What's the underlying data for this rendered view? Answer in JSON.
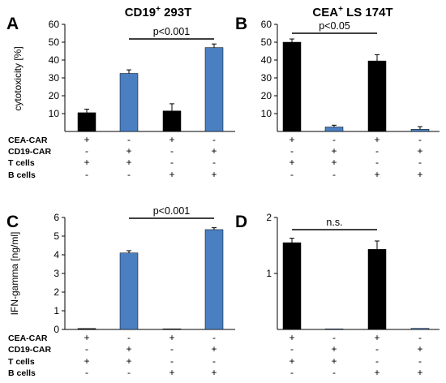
{
  "chart_data": [
    {
      "panel": "A",
      "type": "bar",
      "title": "CD19",
      "title_sup": "+",
      "title_suffix": " 293T",
      "ylabel": "cytotoxicity [%]",
      "ylim": [
        0,
        60
      ],
      "yticks": [
        "10",
        "20",
        "30",
        "40",
        "50",
        "60"
      ],
      "bars": [
        {
          "value": 10.5,
          "error": 2.0,
          "color": "#000000"
        },
        {
          "value": 32.5,
          "error": 2.0,
          "color": "#4a7fc1"
        },
        {
          "value": 11.5,
          "error": 4.0,
          "color": "#000000"
        },
        {
          "value": 47.0,
          "error": 2.0,
          "color": "#4a7fc1"
        }
      ],
      "significance": {
        "text": "p<0.001",
        "from": 1,
        "to": 3
      },
      "conditions": [
        {
          "label": "CEA-CAR",
          "signs": [
            "+",
            "-",
            "+",
            "-"
          ]
        },
        {
          "label": "CD19-CAR",
          "signs": [
            "-",
            "+",
            "-",
            "+"
          ]
        },
        {
          "label": "T cells",
          "signs": [
            "+",
            "+",
            "-",
            "-"
          ]
        },
        {
          "label": "B cells",
          "signs": [
            "-",
            "-",
            "+",
            "+"
          ]
        }
      ]
    },
    {
      "panel": "B",
      "type": "bar",
      "title": "CEA",
      "title_sup": "+",
      "title_suffix": " LS 174T",
      "ylabel": "",
      "ylim": [
        0,
        60
      ],
      "yticks": [
        "10",
        "20",
        "30",
        "40",
        "50",
        "60"
      ],
      "bars": [
        {
          "value": 50.0,
          "error": 1.8,
          "color": "#000000"
        },
        {
          "value": 2.5,
          "error": 1.0,
          "color": "#4a7fc1"
        },
        {
          "value": 39.5,
          "error": 3.5,
          "color": "#000000"
        },
        {
          "value": 1.2,
          "error": 1.5,
          "color": "#4a7fc1"
        }
      ],
      "significance": {
        "text": "p<0.05",
        "from": 0,
        "to": 2
      },
      "conditions": [
        {
          "label": "",
          "signs": [
            "+",
            "-",
            "+",
            "-"
          ]
        },
        {
          "label": "",
          "signs": [
            "-",
            "+",
            "-",
            "+"
          ]
        },
        {
          "label": "",
          "signs": [
            "+",
            "+",
            "-",
            "-"
          ]
        },
        {
          "label": "",
          "signs": [
            "-",
            "-",
            "+",
            "+"
          ]
        }
      ]
    },
    {
      "panel": "C",
      "type": "bar",
      "title": "",
      "ylabel": "IFN-gamma [ng/ml]",
      "ylim": [
        0,
        6
      ],
      "yticks": [
        "0",
        "1",
        "2",
        "3",
        "4",
        "5",
        "6"
      ],
      "bars": [
        {
          "value": 0.05,
          "error": 0.0,
          "color": "#000000"
        },
        {
          "value": 4.1,
          "error": 0.12,
          "color": "#4a7fc1"
        },
        {
          "value": 0.03,
          "error": 0.0,
          "color": "#000000"
        },
        {
          "value": 5.35,
          "error": 0.1,
          "color": "#4a7fc1"
        }
      ],
      "significance": {
        "text": "p<0.001",
        "from": 1,
        "to": 3
      },
      "conditions": [
        {
          "label": "CEA-CAR",
          "signs": [
            "+",
            "-",
            "+",
            "-"
          ]
        },
        {
          "label": "CD19-CAR",
          "signs": [
            "-",
            "+",
            "-",
            "+"
          ]
        },
        {
          "label": "T cells",
          "signs": [
            "+",
            "+",
            "-",
            "-"
          ]
        },
        {
          "label": "B cells",
          "signs": [
            "-",
            "-",
            "+",
            "+"
          ]
        }
      ]
    },
    {
      "panel": "D",
      "type": "bar",
      "title": "",
      "ylabel": "",
      "ylim": [
        0,
        2
      ],
      "yticks": [
        "1",
        "2"
      ],
      "bars": [
        {
          "value": 1.55,
          "error": 0.08,
          "color": "#000000"
        },
        {
          "value": 0.0,
          "error": 0.0,
          "color": "#4a7fc1"
        },
        {
          "value": 1.43,
          "error": 0.15,
          "color": "#000000"
        },
        {
          "value": 0.02,
          "error": 0.0,
          "color": "#4a7fc1"
        }
      ],
      "significance": {
        "text": "n.s.",
        "from": 0,
        "to": 2
      },
      "conditions": [
        {
          "label": "",
          "signs": [
            "+",
            "-",
            "+",
            "-"
          ]
        },
        {
          "label": "",
          "signs": [
            "-",
            "+",
            "-",
            "+"
          ]
        },
        {
          "label": "",
          "signs": [
            "+",
            "+",
            "-",
            "-"
          ]
        },
        {
          "label": "",
          "signs": [
            "-",
            "-",
            "+",
            "+"
          ]
        }
      ]
    }
  ]
}
